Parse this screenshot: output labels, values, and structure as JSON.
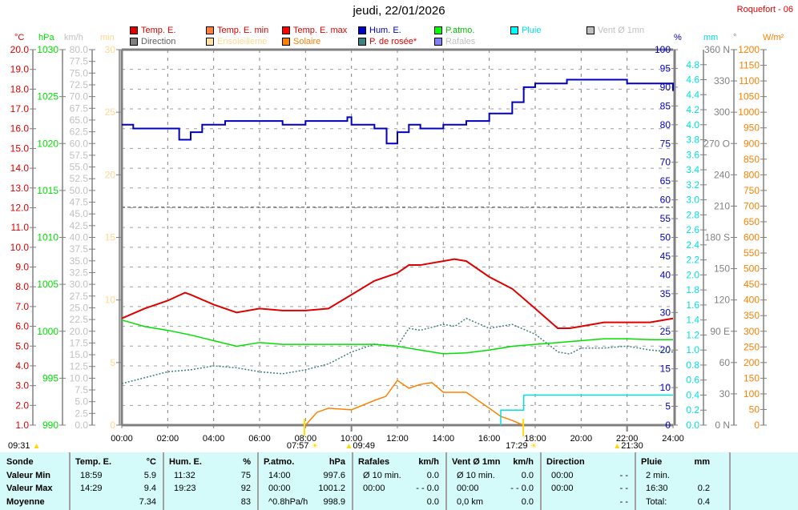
{
  "header": {
    "title": "jeudi, 22/01/2026",
    "station": "Roquefort - 06"
  },
  "legend": [
    {
      "label": "Temp. E.",
      "color": "#e00000",
      "text_color": "#e00000"
    },
    {
      "label": "Temp. E. min",
      "color": "#ff8040",
      "text_color": "#e00000"
    },
    {
      "label": "Temp. E. max",
      "color": "#ff0000",
      "text_color": "#e00000"
    },
    {
      "label": "Hum. E.",
      "color": "#0000c0",
      "text_color": "#0000c0"
    },
    {
      "label": "P.atmo.",
      "color": "#00ff00",
      "text_color": "#00c000"
    },
    {
      "label": "Pluie",
      "color": "#00ffff",
      "text_color": "#00e0e0"
    },
    {
      "label": "Vent Ø 1mn",
      "color": "#c0c0c0",
      "text_color": "#c0c0c0"
    },
    {
      "label": "Direction",
      "color": "#808080",
      "text_color": "#606060"
    },
    {
      "label": "Ensoleilleme",
      "color": "#ffe0a0",
      "text_color": "#ffd890"
    },
    {
      "label": "Solaire",
      "color": "#ff8000",
      "text_color": "#ff8000"
    },
    {
      "label": "P. de rosée*",
      "color": "#408080",
      "text_color": "#e00000"
    },
    {
      "label": "Rafales",
      "color": "#8080ff",
      "text_color": "#c0c0c0"
    }
  ],
  "chart_data": {
    "type": "line",
    "title": "jeudi, 22/01/2026",
    "x_ticks": [
      "00:00",
      "02:00",
      "04:00",
      "06:00",
      "08:00",
      "10:00",
      "12:00",
      "14:00",
      "16:00",
      "18:00",
      "20:00",
      "22:00",
      "24:00"
    ],
    "xlim_hours": [
      0,
      24
    ],
    "grid": true,
    "axes": [
      {
        "id": "temp",
        "unit": "°C",
        "min": 1,
        "max": 20,
        "step": 1,
        "dec": 1,
        "color": "#e00000"
      },
      {
        "id": "press",
        "unit": "hPa",
        "min": 990,
        "max": 1030,
        "step": 5,
        "dec": 0,
        "color": "#00e000"
      },
      {
        "id": "wind",
        "unit": "km/h",
        "min": 0,
        "max": 80,
        "step": 2.5,
        "dec": 1,
        "color": "#c0c0c0"
      },
      {
        "id": "sun",
        "unit": "min",
        "min": 0,
        "max": 30,
        "step": 5,
        "dec": 0,
        "color": "#ffd890"
      },
      {
        "id": "hum",
        "unit": "%",
        "min": 0,
        "max": 100,
        "step": 5,
        "dec": 0,
        "color": "#0000c0"
      },
      {
        "id": "rain",
        "unit": "mm",
        "min": 0,
        "max": 5,
        "step": 0.2,
        "dec": 1,
        "color": "#00e0e0",
        "skip_top": true
      },
      {
        "id": "dir",
        "unit": "°",
        "min": 0,
        "max": 360,
        "step": 30,
        "dec": 0,
        "color": "#808080",
        "compass": {
          "0": "N",
          "90": "E",
          "180": "S",
          "270": "O",
          "360": "N"
        }
      },
      {
        "id": "solar",
        "unit": "W/m²",
        "min": 0,
        "max": 1200,
        "step": 50,
        "dec": 0,
        "color": "#ff8000"
      }
    ],
    "series": [
      {
        "name": "Direction",
        "axis": "dir",
        "color": "#808080",
        "dash": "4,3",
        "x": [
          0,
          24
        ],
        "y": [
          209,
          209
        ]
      },
      {
        "name": "P. de rosée",
        "axis": "temp",
        "color": "#408080",
        "dash": "2,2",
        "x": [
          0,
          1,
          2,
          3,
          4,
          5,
          6,
          7,
          8,
          9,
          10,
          11,
          12,
          12.5,
          13,
          14,
          14.5,
          15,
          16,
          17,
          18,
          19,
          19.5,
          20,
          21,
          22,
          23,
          24
        ],
        "y": [
          3.1,
          3.4,
          3.7,
          3.8,
          4.0,
          3.9,
          3.7,
          3.6,
          3.8,
          4.1,
          4.7,
          5.1,
          5.0,
          5.9,
          5.8,
          6.1,
          6.0,
          6.4,
          5.9,
          6.1,
          5.6,
          4.7,
          4.6,
          4.9,
          4.9,
          5.0,
          4.8,
          4.7
        ]
      },
      {
        "name": "Solaire",
        "axis": "solar",
        "color": "#ff8000",
        "x": [
          8,
          8.5,
          9,
          10,
          11,
          11.5,
          12,
          12.5,
          13,
          13.5,
          14,
          15,
          16,
          16.5,
          17,
          17.48
        ],
        "y": [
          0,
          41,
          54,
          49,
          79,
          92,
          143,
          118,
          130,
          136,
          105,
          105,
          54,
          28,
          15,
          0
        ]
      },
      {
        "name": "Pluie",
        "axis": "rain",
        "color": "#00e0e0",
        "step": true,
        "x": [
          16.5,
          16.5,
          17.5,
          17.5,
          24
        ],
        "y": [
          0,
          0.2,
          0.2,
          0.4,
          0.4
        ]
      },
      {
        "name": "P.atmo.",
        "axis": "press",
        "color": "#00e000",
        "x": [
          0,
          1,
          2,
          3,
          4,
          5,
          6,
          7,
          8,
          9,
          10,
          11,
          12,
          13,
          14,
          15,
          16,
          17,
          18,
          19,
          20,
          21,
          22,
          23,
          24
        ],
        "y": [
          1001.2,
          1000.5,
          1000.1,
          999.6,
          999.0,
          998.4,
          998.8,
          998.6,
          998.6,
          998.6,
          998.6,
          998.6,
          998.4,
          998.0,
          997.6,
          997.7,
          998.0,
          998.4,
          998.6,
          998.8,
          999.0,
          999.2,
          999.2,
          999.1,
          999.1
        ]
      },
      {
        "name": "Temp. E.",
        "axis": "temp",
        "color": "#e00000",
        "x": [
          0,
          1,
          2,
          2.75,
          3,
          4,
          5,
          6,
          7,
          8,
          9,
          10,
          11,
          12,
          12.5,
          13,
          14,
          14.48,
          15,
          16,
          17,
          18,
          18.98,
          19.5,
          20,
          21,
          22,
          23,
          24
        ],
        "y": [
          6.4,
          6.9,
          7.3,
          7.7,
          7.6,
          7.1,
          6.7,
          6.9,
          6.8,
          6.8,
          6.9,
          7.6,
          8.3,
          8.7,
          9.1,
          9.1,
          9.3,
          9.4,
          9.3,
          8.5,
          7.9,
          6.9,
          5.9,
          5.9,
          6.0,
          6.2,
          6.2,
          6.2,
          6.4
        ]
      },
      {
        "name": "Hum. E.",
        "axis": "hum",
        "color": "#0000c0",
        "step": true,
        "x": [
          0,
          0.5,
          2,
          2.5,
          3,
          3.5,
          4.5,
          6,
          7,
          8,
          9,
          9.82,
          10,
          11,
          11.53,
          12,
          12.5,
          13,
          14,
          15,
          16,
          17,
          17.5,
          18,
          19,
          19.38,
          21,
          22,
          23,
          23.5,
          24
        ],
        "y": [
          80,
          79,
          79,
          76,
          78,
          80,
          81,
          81,
          80,
          81,
          81,
          82,
          80,
          79,
          75,
          78,
          80,
          79,
          80,
          81,
          83,
          86,
          90,
          91,
          91,
          92,
          92,
          91,
          91,
          91,
          89
        ]
      }
    ],
    "events": [
      {
        "time": "09:31",
        "hour": null,
        "icon": "moon-icon"
      },
      {
        "time": "07:57",
        "hour": 7.95,
        "icon": "sunrise-icon"
      },
      {
        "time": "09:49",
        "hour": 9.82,
        "icon": "moonrise-icon"
      },
      {
        "time": "17:29",
        "hour": 17.48,
        "icon": "sunset-icon"
      },
      {
        "time": "21:30",
        "hour": 21.5,
        "icon": "moonset-icon"
      }
    ]
  },
  "table": {
    "columns": [
      {
        "h": [
          "Sonde",
          ""
        ],
        "rows": [
          [
            "Valeur Min",
            ""
          ],
          [
            "Valeur Max",
            ""
          ],
          [
            "Moyenne",
            ""
          ]
        ],
        "bold_rows": true
      },
      {
        "h": [
          "Temp. E.",
          "°C"
        ],
        "rows": [
          [
            "18:59",
            "5.9"
          ],
          [
            "14:29",
            "9.4"
          ],
          [
            "",
            "7.34"
          ]
        ]
      },
      {
        "h": [
          "Hum. E.",
          "%"
        ],
        "rows": [
          [
            "11:32",
            "75"
          ],
          [
            "19:23",
            "92"
          ],
          [
            "",
            "83"
          ]
        ]
      },
      {
        "h": [
          "P.atmo.",
          "hPa"
        ],
        "rows": [
          [
            "14:00",
            "997.6"
          ],
          [
            "00:00",
            "1001.2"
          ],
          [
            "^0.8hPa/h",
            "998.9"
          ]
        ]
      },
      {
        "h": [
          "Rafales",
          "km/h"
        ],
        "rows": [
          [
            "Ø 10 min.",
            "0.0"
          ],
          [
            "00:00",
            "- - 0.0"
          ],
          [
            "",
            "0.0"
          ]
        ]
      },
      {
        "h": [
          "Vent Ø 1mn",
          "km/h"
        ],
        "rows": [
          [
            "Ø 10 min.",
            "0.0"
          ],
          [
            "00:00",
            "- - 0.0"
          ],
          [
            "0,0 km",
            "0.0"
          ]
        ]
      },
      {
        "h": [
          "Direction",
          ""
        ],
        "rows": [
          [
            "00:00",
            "- -"
          ],
          [
            "00:00",
            "- -"
          ],
          [
            "",
            "- -"
          ]
        ]
      },
      {
        "h": [
          "Pluie",
          "mm"
        ],
        "rows": [
          [
            "2 min.",
            ""
          ],
          [
            "16:30",
            "0.2"
          ],
          [
            "Total:",
            "0.4"
          ]
        ]
      },
      {
        "h": [
          "",
          ""
        ],
        "rows": [
          [
            "",
            ""
          ],
          [
            "",
            ""
          ],
          [
            "",
            ""
          ]
        ]
      }
    ]
  }
}
